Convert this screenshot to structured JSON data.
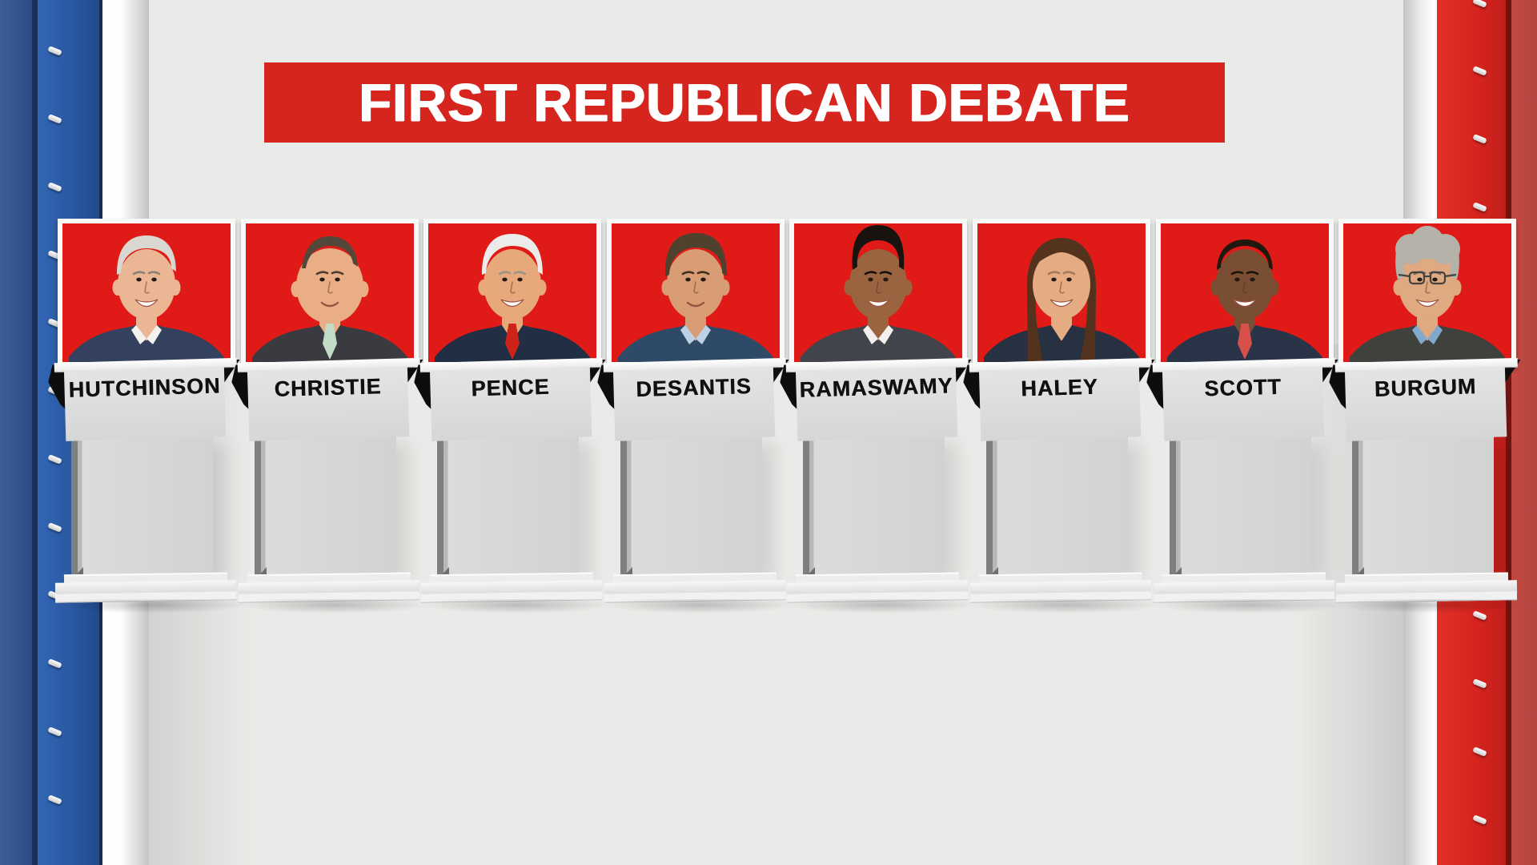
{
  "banner": {
    "title": "FIRST REPUBLICAN DEBATE"
  },
  "theme": {
    "banner_red": "#d6241f",
    "photo_red": "#e01b17",
    "left_panel_blue": "#2b58a2",
    "right_panel_red": "#d8241f",
    "podium_gray": "#d5d7d6",
    "title_text_color": "#ffffff",
    "name_text_color": "#101010"
  },
  "candidates": [
    {
      "name": "HUTCHINSON",
      "portrait": {
        "skin": "#eab694",
        "hair": "#d9d7d0",
        "hair_style": "side",
        "brow": "#8a8274",
        "suit": "#33415f",
        "shirt": "#f4f2ee",
        "open_collar": true,
        "smile": "big"
      }
    },
    {
      "name": "CHRISTIE",
      "portrait": {
        "skin": "#e9ae85",
        "hair": "#55463a",
        "hair_style": "receding",
        "brow": "#4a3b2e",
        "suit": "#3a3b40",
        "shirt": "#f3f1ec",
        "tie": "#c3dcc8",
        "wide_face": true
      }
    },
    {
      "name": "PENCE",
      "portrait": {
        "skin": "#e7a87c",
        "hair": "#ebebe9",
        "hair_style": "swept",
        "brow": "#9a9488",
        "suit": "#222e44",
        "shirt": "#f6f5f2",
        "tie": "#cd2318",
        "smile": "big"
      }
    },
    {
      "name": "DESANTIS",
      "portrait": {
        "skin": "#d89d75",
        "hair": "#50412f",
        "hair_style": "sweptfull",
        "brow": "#3e301f",
        "suit": "#2e4a66",
        "shirt": "#bdd2e6",
        "open_collar": true
      }
    },
    {
      "name": "RAMASWAMY",
      "portrait": {
        "skin": "#9a6440",
        "hair": "#191310",
        "hair_style": "tall",
        "brow": "#16100c",
        "suit": "#41444a",
        "shirt": "#f2f0ec",
        "open_collar": true,
        "smile": "big"
      }
    },
    {
      "name": "HALEY",
      "portrait": {
        "skin": "#e5ac83",
        "hair": "#54331e",
        "hair_style": "long",
        "brow": "#42281662",
        "suit": "#273142",
        "female": true,
        "smile": "big"
      }
    },
    {
      "name": "SCOTT",
      "portrait": {
        "skin": "#7a4e33",
        "hair": "#221810",
        "hair_style": "buzz",
        "brow": "#1a110b",
        "suit": "#2a3448",
        "shirt": "#d7e4ef",
        "tie": "#d8504a",
        "smile": "big"
      }
    },
    {
      "name": "BURGUM",
      "portrait": {
        "skin": "#dfa982",
        "hair": "#b5b2a9",
        "hair_style": "curly",
        "brow": "#6e675c",
        "suit": "#3f423c",
        "shirt": "#82a9cb",
        "open_collar": true,
        "glasses": true,
        "smile": "big"
      }
    }
  ]
}
